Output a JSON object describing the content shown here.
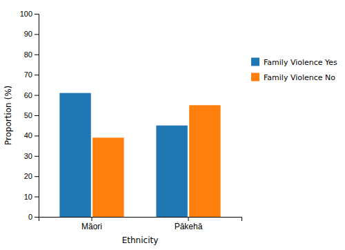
{
  "chart_data": {
    "type": "bar",
    "categories": [
      "Māori",
      "Pākehā"
    ],
    "series": [
      {
        "name": "Family Violence Yes",
        "values": [
          61,
          45
        ]
      },
      {
        "name": "Family Violence No",
        "values": [
          39,
          55
        ]
      }
    ],
    "xlabel": "Ethnicity",
    "ylabel": "Proportion (%)",
    "ylim": [
      0,
      100
    ],
    "yticks": [
      0,
      10,
      20,
      30,
      40,
      50,
      60,
      70,
      80,
      90,
      100
    ],
    "grid": false,
    "legend": "right"
  }
}
